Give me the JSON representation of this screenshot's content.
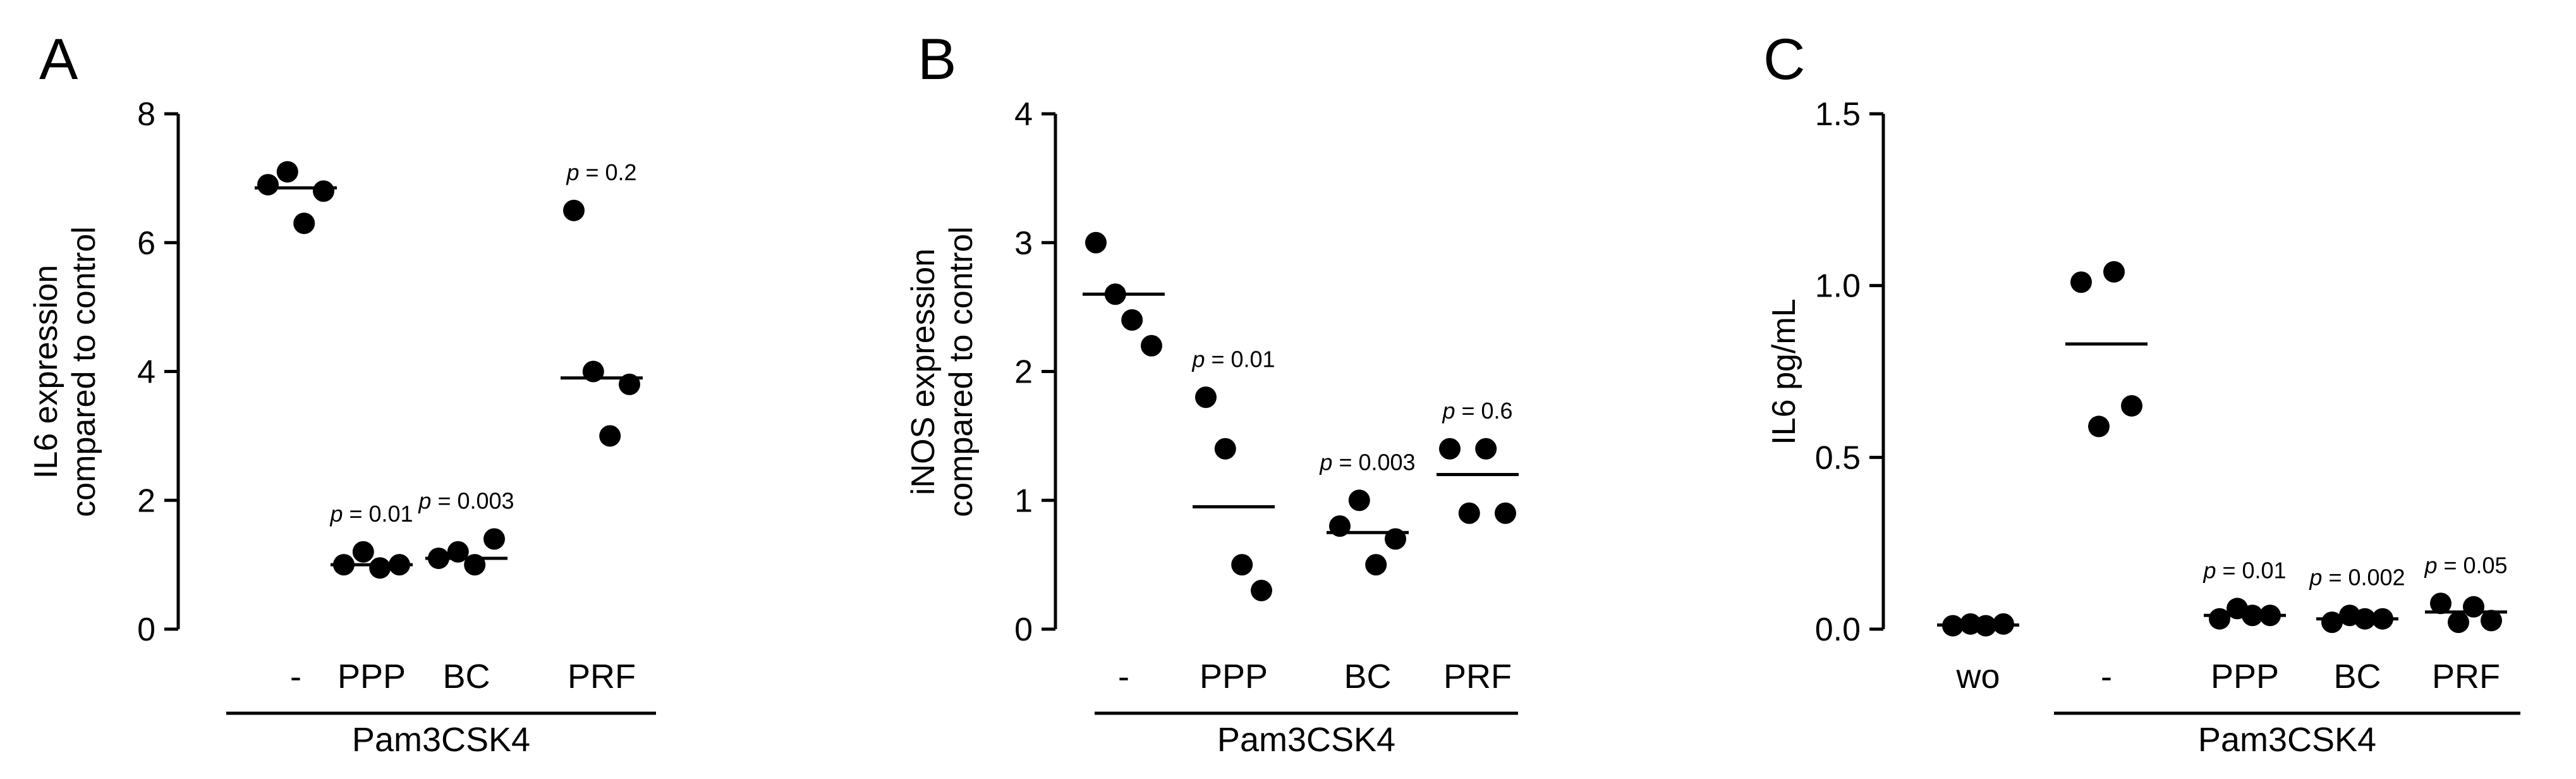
{
  "chart_data": [
    {
      "type": "scatter",
      "panel": "A",
      "ylabel_lines": [
        "IL6 expression",
        "compared to control"
      ],
      "ylim": [
        0,
        8
      ],
      "yticks": [
        0,
        2,
        4,
        6,
        8
      ],
      "ytick_labels": [
        "0",
        "2",
        "4",
        "6",
        "8"
      ],
      "categories": [
        "-",
        "PPP",
        "BC",
        "PRF"
      ],
      "group_label": "Pam3CSK4",
      "groups": [
        {
          "category": "-",
          "points": [
            6.9,
            7.1,
            6.3,
            6.8
          ],
          "mean": 6.85,
          "pvalue": ""
        },
        {
          "category": "PPP",
          "points": [
            1.0,
            1.2,
            0.95,
            1.0
          ],
          "mean": 1.0,
          "pvalue": "= 0.01"
        },
        {
          "category": "BC",
          "points": [
            1.1,
            1.2,
            1.0,
            1.4
          ],
          "mean": 1.1,
          "pvalue": "= 0.003"
        },
        {
          "category": "PRF",
          "points": [
            6.5,
            4.0,
            3.0,
            3.8
          ],
          "mean": 3.9,
          "pvalue": "= 0.2"
        }
      ]
    },
    {
      "type": "scatter",
      "panel": "B",
      "ylabel_lines": [
        "iNOS expression",
        "compared to control"
      ],
      "ylim": [
        0,
        4
      ],
      "yticks": [
        0,
        1,
        2,
        3,
        4
      ],
      "ytick_labels": [
        "0",
        "1",
        "2",
        "3",
        "4"
      ],
      "categories": [
        "-",
        "PPP",
        "BC",
        "PRF"
      ],
      "group_label": "Pam3CSK4",
      "groups": [
        {
          "category": "-",
          "points": [
            3.0,
            2.6,
            2.4,
            2.2
          ],
          "mean": 2.6,
          "pvalue": ""
        },
        {
          "category": "PPP",
          "points": [
            1.8,
            1.4,
            0.5,
            0.3
          ],
          "mean": 0.95,
          "pvalue": "= 0.01"
        },
        {
          "category": "BC",
          "points": [
            0.8,
            1.0,
            0.5,
            0.7
          ],
          "mean": 0.75,
          "pvalue": "= 0.003"
        },
        {
          "category": "PRF",
          "points": [
            1.4,
            0.9,
            1.4,
            0.9
          ],
          "mean": 1.2,
          "pvalue": "= 0.6"
        }
      ]
    },
    {
      "type": "scatter",
      "panel": "C",
      "ylabel_lines": [
        "IL6 pg/mL"
      ],
      "ylim": [
        0,
        1.5
      ],
      "yticks": [
        0,
        0.5,
        1.0,
        1.5
      ],
      "ytick_labels": [
        "0.0",
        "0.5",
        "1.0",
        "1.5"
      ],
      "categories": [
        "wo",
        "-",
        "PPP",
        "BC",
        "PRF"
      ],
      "group_label": "Pam3CSK4",
      "group_span": [
        "-",
        "PRF"
      ],
      "groups": [
        {
          "category": "wo",
          "points": [
            0.01,
            0.015,
            0.01,
            0.015
          ],
          "mean": 0.012,
          "pvalue": ""
        },
        {
          "category": "-",
          "points": [
            1.01,
            0.59,
            1.04,
            0.65
          ],
          "mean": 0.83,
          "pvalue": ""
        },
        {
          "category": "PPP",
          "points": [
            0.03,
            0.06,
            0.04,
            0.04
          ],
          "mean": 0.04,
          "pvalue": "= 0.01"
        },
        {
          "category": "BC",
          "points": [
            0.02,
            0.04,
            0.03,
            0.03
          ],
          "mean": 0.03,
          "pvalue": "= 0.002"
        },
        {
          "category": "PRF",
          "points": [
            0.075,
            0.02,
            0.065,
            0.025
          ],
          "mean": 0.05,
          "pvalue": "= 0.05"
        }
      ]
    }
  ]
}
